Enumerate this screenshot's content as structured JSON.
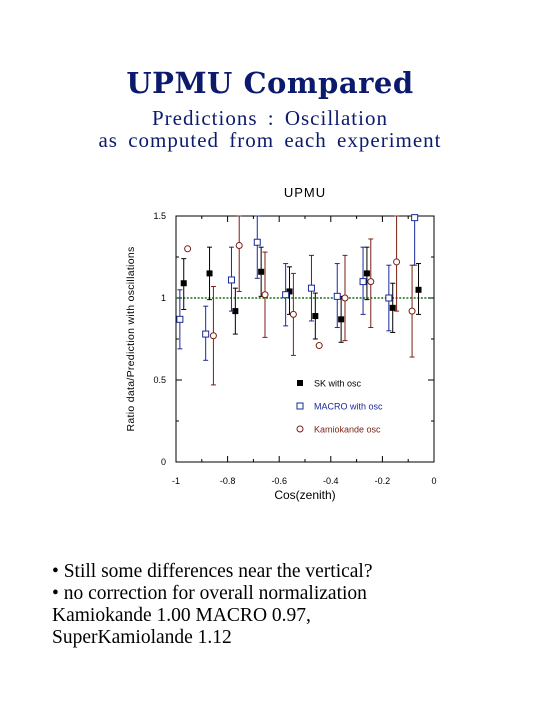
{
  "slide": {
    "title": "UPMU Compared",
    "subtitle1": "Predictions  :    Oscillation",
    "subtitle2": "as  computed  from  each  experiment",
    "notes": [
      "• Still some differences near the vertical?",
      "• no correction for  overall normalization",
      "Kamiokande 1.00 MACRO  0.97,",
      "SuperKamiolande 1.12"
    ]
  },
  "chart_data": {
    "type": "scatter",
    "title": "UPMU",
    "xlabel": "Cos(zenith)",
    "ylabel": "Ratio  data/Prediction  with  oscillations",
    "xlim": [
      -1,
      0
    ],
    "ylim": [
      0,
      1.5
    ],
    "x_ticks": [
      "-1",
      "-0.8",
      "-0.6",
      "-0.4",
      "-0.2",
      "0"
    ],
    "y_ticks": [
      "0",
      "0.5",
      "1",
      "1.5"
    ],
    "reference_line": 1.0,
    "legend_position": "bottom-right",
    "grid": false,
    "series": [
      {
        "name": "SK with osc",
        "color": "#000000",
        "marker": "filled-square",
        "points": [
          {
            "x": -0.97,
            "y": 1.09,
            "lo": 0.93,
            "hi": 1.24
          },
          {
            "x": -0.87,
            "y": 1.15,
            "lo": 0.99,
            "hi": 1.31
          },
          {
            "x": -0.77,
            "y": 0.92,
            "lo": 0.78,
            "hi": 1.06
          },
          {
            "x": -0.67,
            "y": 1.16,
            "lo": 1.01,
            "hi": 1.31
          },
          {
            "x": -0.56,
            "y": 1.04,
            "lo": 0.9,
            "hi": 1.19
          },
          {
            "x": -0.46,
            "y": 0.89,
            "lo": 0.75,
            "hi": 1.03
          },
          {
            "x": -0.36,
            "y": 0.87,
            "lo": 0.73,
            "hi": 1.01
          },
          {
            "x": -0.26,
            "y": 1.15,
            "lo": 0.99,
            "hi": 1.31
          },
          {
            "x": -0.16,
            "y": 0.94,
            "lo": 0.79,
            "hi": 1.09
          },
          {
            "x": -0.06,
            "y": 1.05,
            "lo": 0.9,
            "hi": 1.21
          }
        ]
      },
      {
        "name": "MACRO with osc",
        "color": "#1a2a9a",
        "marker": "open-square",
        "points": [
          {
            "x": -0.985,
            "y": 0.87,
            "lo": 0.69,
            "hi": 1.05
          },
          {
            "x": -0.885,
            "y": 0.78,
            "lo": 0.62,
            "hi": 0.95
          },
          {
            "x": -0.785,
            "y": 1.11,
            "lo": 0.92,
            "hi": 1.31
          },
          {
            "x": -0.685,
            "y": 1.34,
            "lo": 1.12,
            "hi": 1.56
          },
          {
            "x": -0.575,
            "y": 1.02,
            "lo": 0.83,
            "hi": 1.21
          },
          {
            "x": -0.475,
            "y": 1.06,
            "lo": 0.86,
            "hi": 1.26
          },
          {
            "x": -0.375,
            "y": 1.01,
            "lo": 0.82,
            "hi": 1.21
          },
          {
            "x": -0.275,
            "y": 1.1,
            "lo": 0.9,
            "hi": 1.31
          },
          {
            "x": -0.175,
            "y": 1.0,
            "lo": 0.8,
            "hi": 1.2
          },
          {
            "x": -0.075,
            "y": 1.49,
            "lo": 1.2,
            "hi": 1.78
          }
        ]
      },
      {
        "name": "Kamiokande osc",
        "color": "#7a1f12",
        "marker": "open-circle",
        "points": [
          {
            "x": -0.955,
            "y": 1.3
          },
          {
            "x": -0.855,
            "y": 0.77,
            "lo": 0.47,
            "hi": 1.07
          },
          {
            "x": -0.755,
            "y": 1.32,
            "lo": 1.04,
            "hi": 1.6
          },
          {
            "x": -0.655,
            "y": 1.02,
            "lo": 0.76,
            "hi": 1.28
          },
          {
            "x": -0.545,
            "y": 0.9,
            "lo": 0.65,
            "hi": 1.15
          },
          {
            "x": -0.445,
            "y": 0.71
          },
          {
            "x": -0.345,
            "y": 1.0,
            "lo": 0.74,
            "hi": 1.26
          },
          {
            "x": -0.245,
            "y": 1.1,
            "lo": 0.82,
            "hi": 1.36
          },
          {
            "x": -0.145,
            "y": 1.22,
            "lo": 0.92,
            "hi": 1.52
          },
          {
            "x": -0.085,
            "y": 0.92,
            "lo": 0.64,
            "hi": 1.2
          }
        ]
      }
    ]
  }
}
